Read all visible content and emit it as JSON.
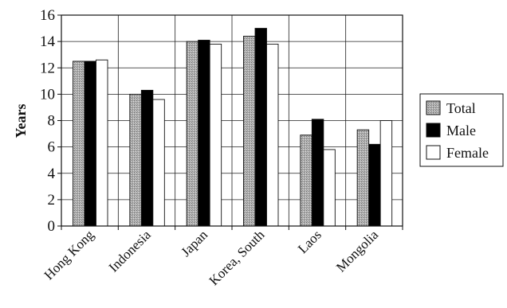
{
  "chart_data": {
    "type": "bar",
    "title": "",
    "xlabel": "",
    "ylabel": "Years",
    "ylim": [
      0,
      16
    ],
    "yticks": [
      0,
      2,
      4,
      6,
      8,
      10,
      12,
      14,
      16
    ],
    "grid": true,
    "legend_position": "right",
    "categories": [
      "Hong Kong",
      "Indonesia",
      "Japan",
      "Korea, South",
      "Laos",
      "Mongolia"
    ],
    "series": [
      {
        "name": "Total",
        "values": [
          12.5,
          10.0,
          14.0,
          14.4,
          6.9,
          7.3
        ],
        "color": "#a6a6a6",
        "pattern": "dotted-gray"
      },
      {
        "name": "Male",
        "values": [
          12.5,
          10.3,
          14.1,
          15.0,
          8.1,
          6.2
        ],
        "color": "#000000",
        "pattern": "solid"
      },
      {
        "name": "Female",
        "values": [
          12.6,
          9.6,
          13.8,
          13.8,
          5.8,
          8.0
        ],
        "color": "#ffffff",
        "pattern": "outline"
      }
    ]
  }
}
